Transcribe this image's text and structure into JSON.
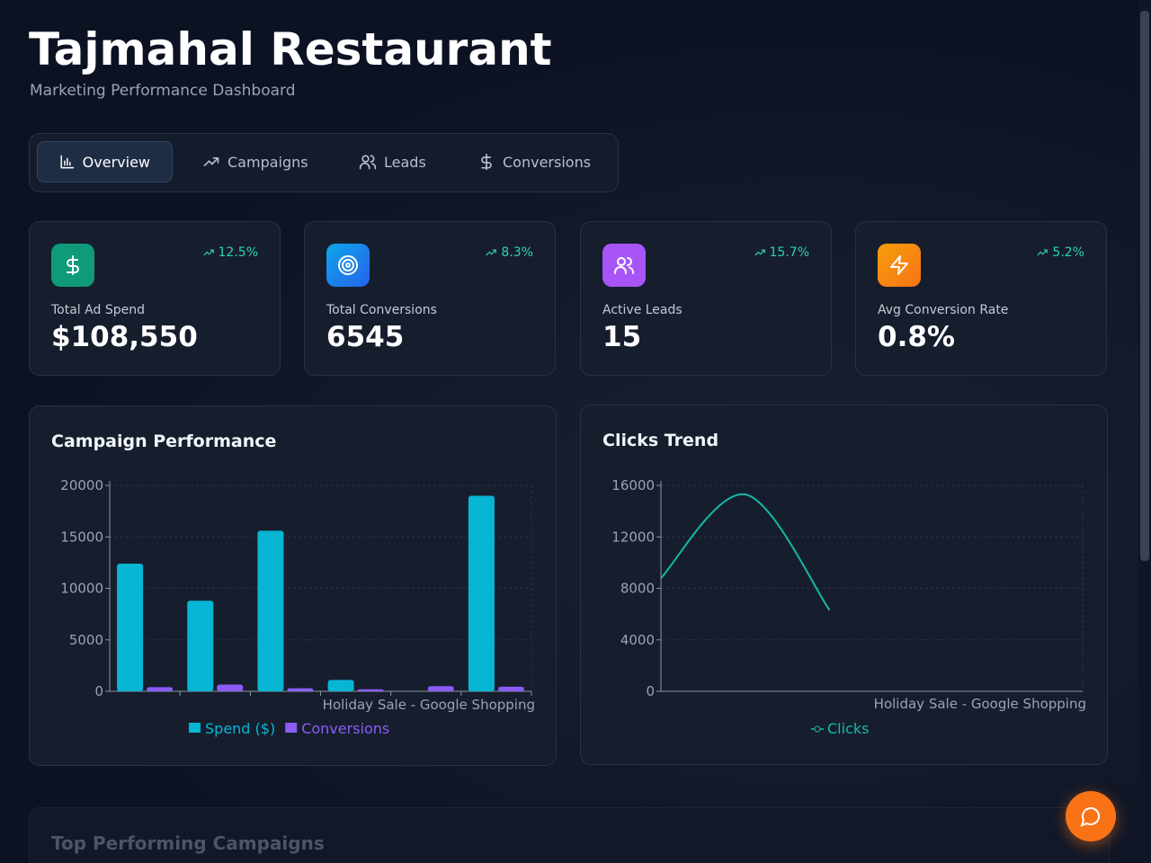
{
  "header": {
    "title": "Tajmahal Restaurant",
    "subtitle": "Marketing Performance Dashboard"
  },
  "tabs": [
    "Overview",
    "Campaigns",
    "Leads",
    "Conversions"
  ],
  "stats": [
    {
      "label": "Total Ad Spend",
      "value": "$108,550",
      "change": "12.5%"
    },
    {
      "label": "Total Conversions",
      "value": "6545",
      "change": "8.3%"
    },
    {
      "label": "Active Leads",
      "value": "15",
      "change": "15.7%"
    },
    {
      "label": "Avg Conversion Rate",
      "value": "0.8%",
      "change": "5.2%"
    }
  ],
  "chart_data": [
    {
      "type": "bar",
      "title": "Campaign Performance",
      "categories": [
        null,
        null,
        null,
        null,
        null,
        "Holiday Sale - Google Shopping"
      ],
      "series": [
        {
          "name": "Spend ($)",
          "color": "#06b6d4",
          "values": [
            12400,
            8800,
            15600,
            1100,
            0,
            19000
          ]
        },
        {
          "name": "Conversions",
          "color": "#8b5cf6",
          "values": [
            400,
            650,
            300,
            200,
            500,
            450
          ]
        }
      ],
      "ylim": [
        0,
        20000
      ],
      "yticks": [
        0,
        5000,
        10000,
        15000,
        20000
      ],
      "grid": true
    },
    {
      "type": "line",
      "title": "Clicks Trend",
      "categories": [
        null,
        null,
        null,
        null,
        null,
        "Holiday Sale - Google Shopping"
      ],
      "series": [
        {
          "name": "Clicks",
          "color": "#14b8a6",
          "values": [
            8800,
            15300,
            6300,
            null,
            null,
            null
          ]
        }
      ],
      "ylim": [
        0,
        16000
      ],
      "yticks": [
        0,
        4000,
        8000,
        12000,
        16000
      ],
      "grid": true
    }
  ],
  "section_title": "Top Performing Campaigns"
}
